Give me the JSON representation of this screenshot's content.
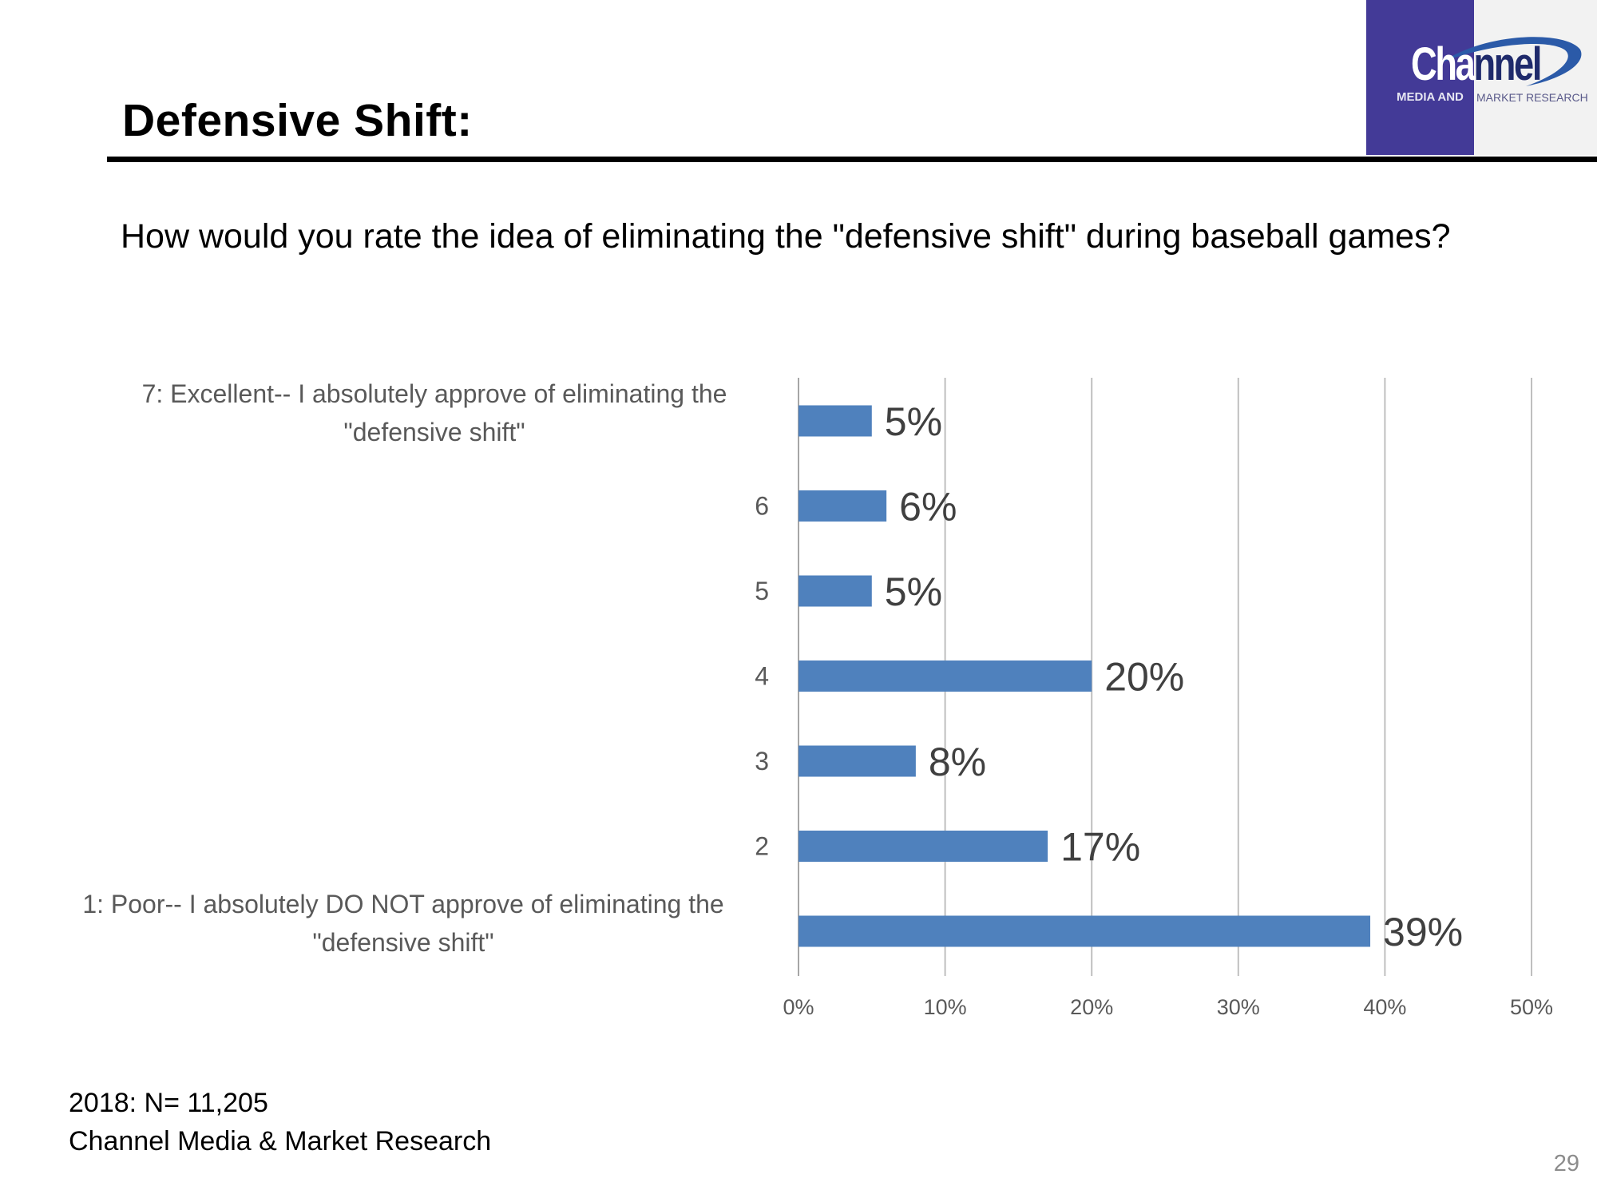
{
  "slide": {
    "title": "Defensive Shift:",
    "question": "How would you rate the idea of eliminating the \"defensive shift\" during baseball games?",
    "page_number": "29"
  },
  "logo": {
    "word_first": "Cha",
    "word_rest": "nnel",
    "sub_left": "MEDIA AND",
    "sub_right": "MARKET RESEARCH"
  },
  "footer": {
    "sample": "2018: N= 11,205",
    "source": "Channel Media & Market Research"
  },
  "colors": {
    "bar": "#4f81bd",
    "grid": "#bfbfbf",
    "category_text": "#595959",
    "label_text": "#404040"
  },
  "chart_data": {
    "type": "bar",
    "orientation": "horizontal",
    "title": "",
    "xlabel": "",
    "ylabel": "",
    "categories": [
      [
        "7: Excellent-- I absolutely approve of eliminating the",
        "\"defensive shift\""
      ],
      [
        "6"
      ],
      [
        "5"
      ],
      [
        "4"
      ],
      [
        "3"
      ],
      [
        "2"
      ],
      [
        "1:  Poor-- I absolutely DO NOT approve of eliminating the",
        "\"defensive shift\""
      ]
    ],
    "values": [
      5,
      6,
      5,
      20,
      8,
      17,
      39
    ],
    "value_labels": [
      "5%",
      "6%",
      "5%",
      "20%",
      "8%",
      "17%",
      "39%"
    ],
    "xlim": [
      0,
      50
    ],
    "xticks": [
      0,
      10,
      20,
      30,
      40,
      50
    ],
    "xtick_labels": [
      "0%",
      "10%",
      "20%",
      "30%",
      "40%",
      "50%"
    ],
    "grid": true,
    "legend": "none"
  }
}
